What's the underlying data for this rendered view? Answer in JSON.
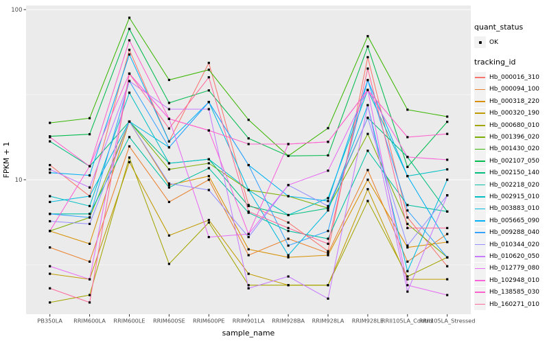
{
  "chart": {
    "y_axis_label": "FPKM + 1",
    "x_axis_label": "sample_name",
    "legend": {
      "quant_title": "quant_status",
      "quant_ok_label": "OK",
      "tracking_title": "tracking_id"
    }
  },
  "colors": {
    "panel_bg": "#EBEBEB",
    "gridline": "#FFFFFF",
    "tick_text": "#4D4D4D",
    "axis_title_text": "#000000",
    "point": "#000000",
    "legend_key_bg": "#F2F2F2"
  },
  "chart_data": {
    "type": "line",
    "title": "",
    "xlabel": "sample_name",
    "ylabel": "FPKM + 1",
    "y_scale": "log10",
    "ylim": [
      1.6,
      107
    ],
    "grid": true,
    "legend_position": "right",
    "marker": "small-black-point",
    "quant_status_legend": {
      "title": "quant_status",
      "items": [
        "OK"
      ]
    },
    "y_major_ticks": [
      100,
      10
    ],
    "y_minor_gridlines": [
      31.623,
      3.1623
    ],
    "categories": [
      "PB350LA",
      "RRIM600LA",
      "RRIM600LE",
      "RRIM600SE",
      "RRIM600PE",
      "RRIM901LA",
      "RRIM928BA",
      "RRIM928LA",
      "RRIM928LE",
      "RRII105LA_Control",
      "RRII105LA_Stressed"
    ],
    "series": [
      {
        "name": "Hb_000016_310",
        "color": "#F8766D",
        "values": [
          12.2,
          8.0,
          58.0,
          16.8,
          48.6,
          7.1,
          5.6,
          3.8,
          52.5,
          6.0,
          3.1
        ]
      },
      {
        "name": "Hb_000094_100",
        "color": "#EA8331",
        "values": [
          4.0,
          3.3,
          15.7,
          7.4,
          10.0,
          3.6,
          4.5,
          3.7,
          11.4,
          3.3,
          4.8
        ]
      },
      {
        "name": "Hb_000318_220",
        "color": "#D89000",
        "values": [
          5.0,
          4.2,
          22.0,
          9.3,
          10.5,
          3.9,
          3.5,
          3.6,
          10.0,
          4.0,
          4.3
        ]
      },
      {
        "name": "Hb_000320_190",
        "color": "#C09B00",
        "values": [
          2.8,
          2.6,
          12.7,
          4.7,
          5.8,
          2.8,
          2.4,
          2.4,
          8.8,
          2.6,
          2.6
        ]
      },
      {
        "name": "Hb_000680_010",
        "color": "#A3A500",
        "values": [
          1.9,
          2.1,
          13.5,
          3.2,
          5.6,
          2.4,
          2.4,
          2.4,
          7.5,
          2.7,
          3.5
        ]
      },
      {
        "name": "Hb_001396_020",
        "color": "#7CAE00",
        "values": [
          5.0,
          6.0,
          22.0,
          11.5,
          12.5,
          8.7,
          8.0,
          6.8,
          18.6,
          5.5,
          3.5
        ]
      },
      {
        "name": "Hb_001430_020",
        "color": "#39B600",
        "values": [
          21.6,
          23.0,
          89.5,
          38.6,
          44.3,
          22.5,
          13.8,
          20.1,
          69.8,
          25.8,
          23.5
        ]
      },
      {
        "name": "Hb_002107_050",
        "color": "#00BB4E",
        "values": [
          18.0,
          18.5,
          77.0,
          28.3,
          33.5,
          17.5,
          13.8,
          13.9,
          60.7,
          11.9,
          21.9
        ]
      },
      {
        "name": "Hb_002150_140",
        "color": "#00BF7D",
        "values": [
          16.8,
          12.0,
          22.0,
          12.5,
          13.2,
          7.0,
          6.2,
          6.8,
          23.1,
          13.6,
          6.5
        ]
      },
      {
        "name": "Hb_002218_020",
        "color": "#00C1A3",
        "values": [
          6.3,
          6.3,
          17.8,
          9.0,
          11.7,
          6.4,
          5.0,
          4.5,
          14.8,
          7.1,
          6.5
        ]
      },
      {
        "name": "Hb_002915_010",
        "color": "#00BFC4",
        "values": [
          8.0,
          7.0,
          32.5,
          12.5,
          13.2,
          8.7,
          6.2,
          7.8,
          33.7,
          10.5,
          11.5
        ]
      },
      {
        "name": "Hb_003883_010",
        "color": "#00BAE0",
        "values": [
          7.4,
          8.0,
          22.0,
          15.5,
          28.6,
          8.7,
          3.6,
          6.6,
          27.4,
          2.9,
          10.0
        ]
      },
      {
        "name": "Hb_005665_090",
        "color": "#00B0F6",
        "values": [
          11.0,
          10.6,
          54.5,
          16.8,
          28.6,
          12.2,
          8.0,
          7.5,
          38.5,
          10.5,
          4.3
        ]
      },
      {
        "name": "Hb_009288_040",
        "color": "#35A2FF",
        "values": [
          6.3,
          6.0,
          38.0,
          15.5,
          28.6,
          12.2,
          4.1,
          5.0,
          38.5,
          6.6,
          3.5
        ]
      },
      {
        "name": "Hb_010344_020",
        "color": "#9590FF",
        "values": [
          5.7,
          5.5,
          22.0,
          9.5,
          8.7,
          4.6,
          9.3,
          7.0,
          23.1,
          4.1,
          8.1
        ]
      },
      {
        "name": "Hb_010620_050",
        "color": "#C77CFF",
        "values": [
          11.5,
          9.0,
          38.0,
          26.0,
          26.0,
          2.3,
          2.7,
          2.0,
          27.4,
          2.2,
          8.1
        ]
      },
      {
        "name": "Hb_012779_080",
        "color": "#E76BF3",
        "values": [
          3.1,
          2.6,
          42.0,
          22.8,
          4.6,
          4.8,
          9.3,
          11.3,
          33.7,
          2.4,
          2.1
        ]
      },
      {
        "name": "Hb_102948_010",
        "color": "#FA62DB",
        "values": [
          5.0,
          12.0,
          42.0,
          22.8,
          19.5,
          4.8,
          16.2,
          16.7,
          33.7,
          13.6,
          13.1
        ]
      },
      {
        "name": "Hb_138585_030",
        "color": "#FF61CC",
        "values": [
          17.8,
          12.0,
          66.0,
          22.8,
          19.5,
          16.2,
          16.2,
          16.7,
          33.7,
          17.8,
          18.6
        ]
      },
      {
        "name": "Hb_160271_010",
        "color": "#FF6A98",
        "values": [
          2.3,
          1.9,
          42.0,
          20.0,
          40.0,
          6.5,
          5.2,
          4.2,
          45.0,
          5.2,
          5.2
        ]
      }
    ]
  }
}
